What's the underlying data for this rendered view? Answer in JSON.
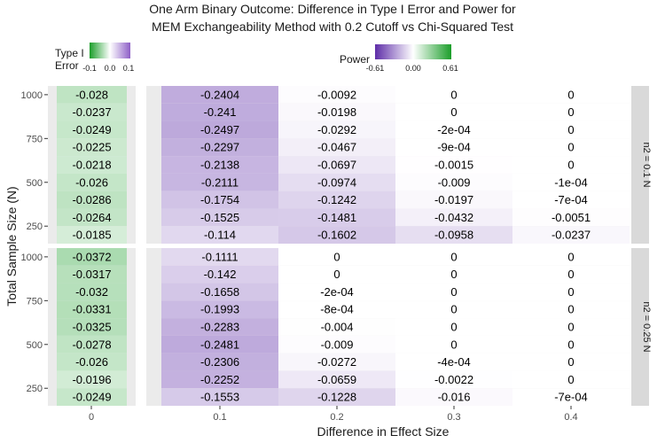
{
  "chart_data": {
    "type": "heatmap",
    "title_lines": [
      "One Arm Binary Outcome: Difference in Type I Error and Power for",
      "MEM Exchangeability Method with 0.2 Cutoff vs Chi-Squared Test"
    ],
    "xlabel": "Difference in Effect Size",
    "ylabel": "Total Sample Size (N)",
    "x_ticks": [
      "0",
      "0.1",
      "0.2",
      "0.3",
      "0.4"
    ],
    "y_ticks": [
      1000,
      750,
      500,
      250
    ],
    "ylim": [
      150,
      1050
    ],
    "sample_sizes": [
      1000,
      900,
      800,
      700,
      600,
      500,
      400,
      300,
      200
    ],
    "legend_type1": {
      "title_lines": [
        "Type I",
        "Error"
      ],
      "ticks": [
        "-0.1",
        "0.0",
        "0.1"
      ],
      "range": [
        -0.1,
        0.1
      ],
      "low_color": "#1b9e2a",
      "high_color": "#8e5fc7",
      "position": "top-left"
    },
    "legend_power": {
      "title": "Power",
      "ticks": [
        "-0.61",
        "0.00",
        "0.61"
      ],
      "range": [
        -0.61,
        0.61
      ],
      "low_color": "#5e2da8",
      "high_color": "#1b9e2a",
      "position": "top"
    },
    "facets": [
      {
        "strip": "n2 = 0.1 N",
        "type1_values": [
          "-0.028",
          "-0.0237",
          "-0.0249",
          "-0.0225",
          "-0.0218",
          "-0.026",
          "-0.0286",
          "-0.0264",
          "-0.0185"
        ],
        "power_values": [
          [
            "-0.2404",
            "-0.0092",
            "0",
            "0"
          ],
          [
            "-0.241",
            "-0.0198",
            "0",
            "0"
          ],
          [
            "-0.2497",
            "-0.0292",
            "-2e-04",
            "0"
          ],
          [
            "-0.2297",
            "-0.0467",
            "-9e-04",
            "0"
          ],
          [
            "-0.2138",
            "-0.0697",
            "-0.0015",
            "0"
          ],
          [
            "-0.2111",
            "-0.0974",
            "-0.009",
            "-1e-04"
          ],
          [
            "-0.1754",
            "-0.1242",
            "-0.0197",
            "-7e-04"
          ],
          [
            "-0.1525",
            "-0.1481",
            "-0.0432",
            "-0.0051"
          ],
          [
            "-0.114",
            "-0.1602",
            "-0.0958",
            "-0.0237"
          ]
        ]
      },
      {
        "strip": "n2 = 0.25 N",
        "type1_values": [
          "-0.0372",
          "-0.0317",
          "-0.032",
          "-0.0331",
          "-0.0325",
          "-0.0278",
          "-0.026",
          "-0.0196",
          "-0.0249"
        ],
        "power_values": [
          [
            "-0.1111",
            "0",
            "0",
            "0"
          ],
          [
            "-0.142",
            "0",
            "0",
            "0"
          ],
          [
            "-0.1658",
            "-2e-04",
            "0",
            "0"
          ],
          [
            "-0.1993",
            "-8e-04",
            "0",
            "0"
          ],
          [
            "-0.2283",
            "-0.004",
            "0",
            "0"
          ],
          [
            "-0.2481",
            "-0.009",
            "0",
            "0"
          ],
          [
            "-0.2306",
            "-0.0272",
            "-4e-04",
            "0"
          ],
          [
            "-0.2252",
            "-0.0659",
            "-0.0022",
            "0"
          ],
          [
            "-0.1553",
            "-0.1228",
            "-0.016",
            "-7e-04"
          ]
        ]
      }
    ]
  }
}
